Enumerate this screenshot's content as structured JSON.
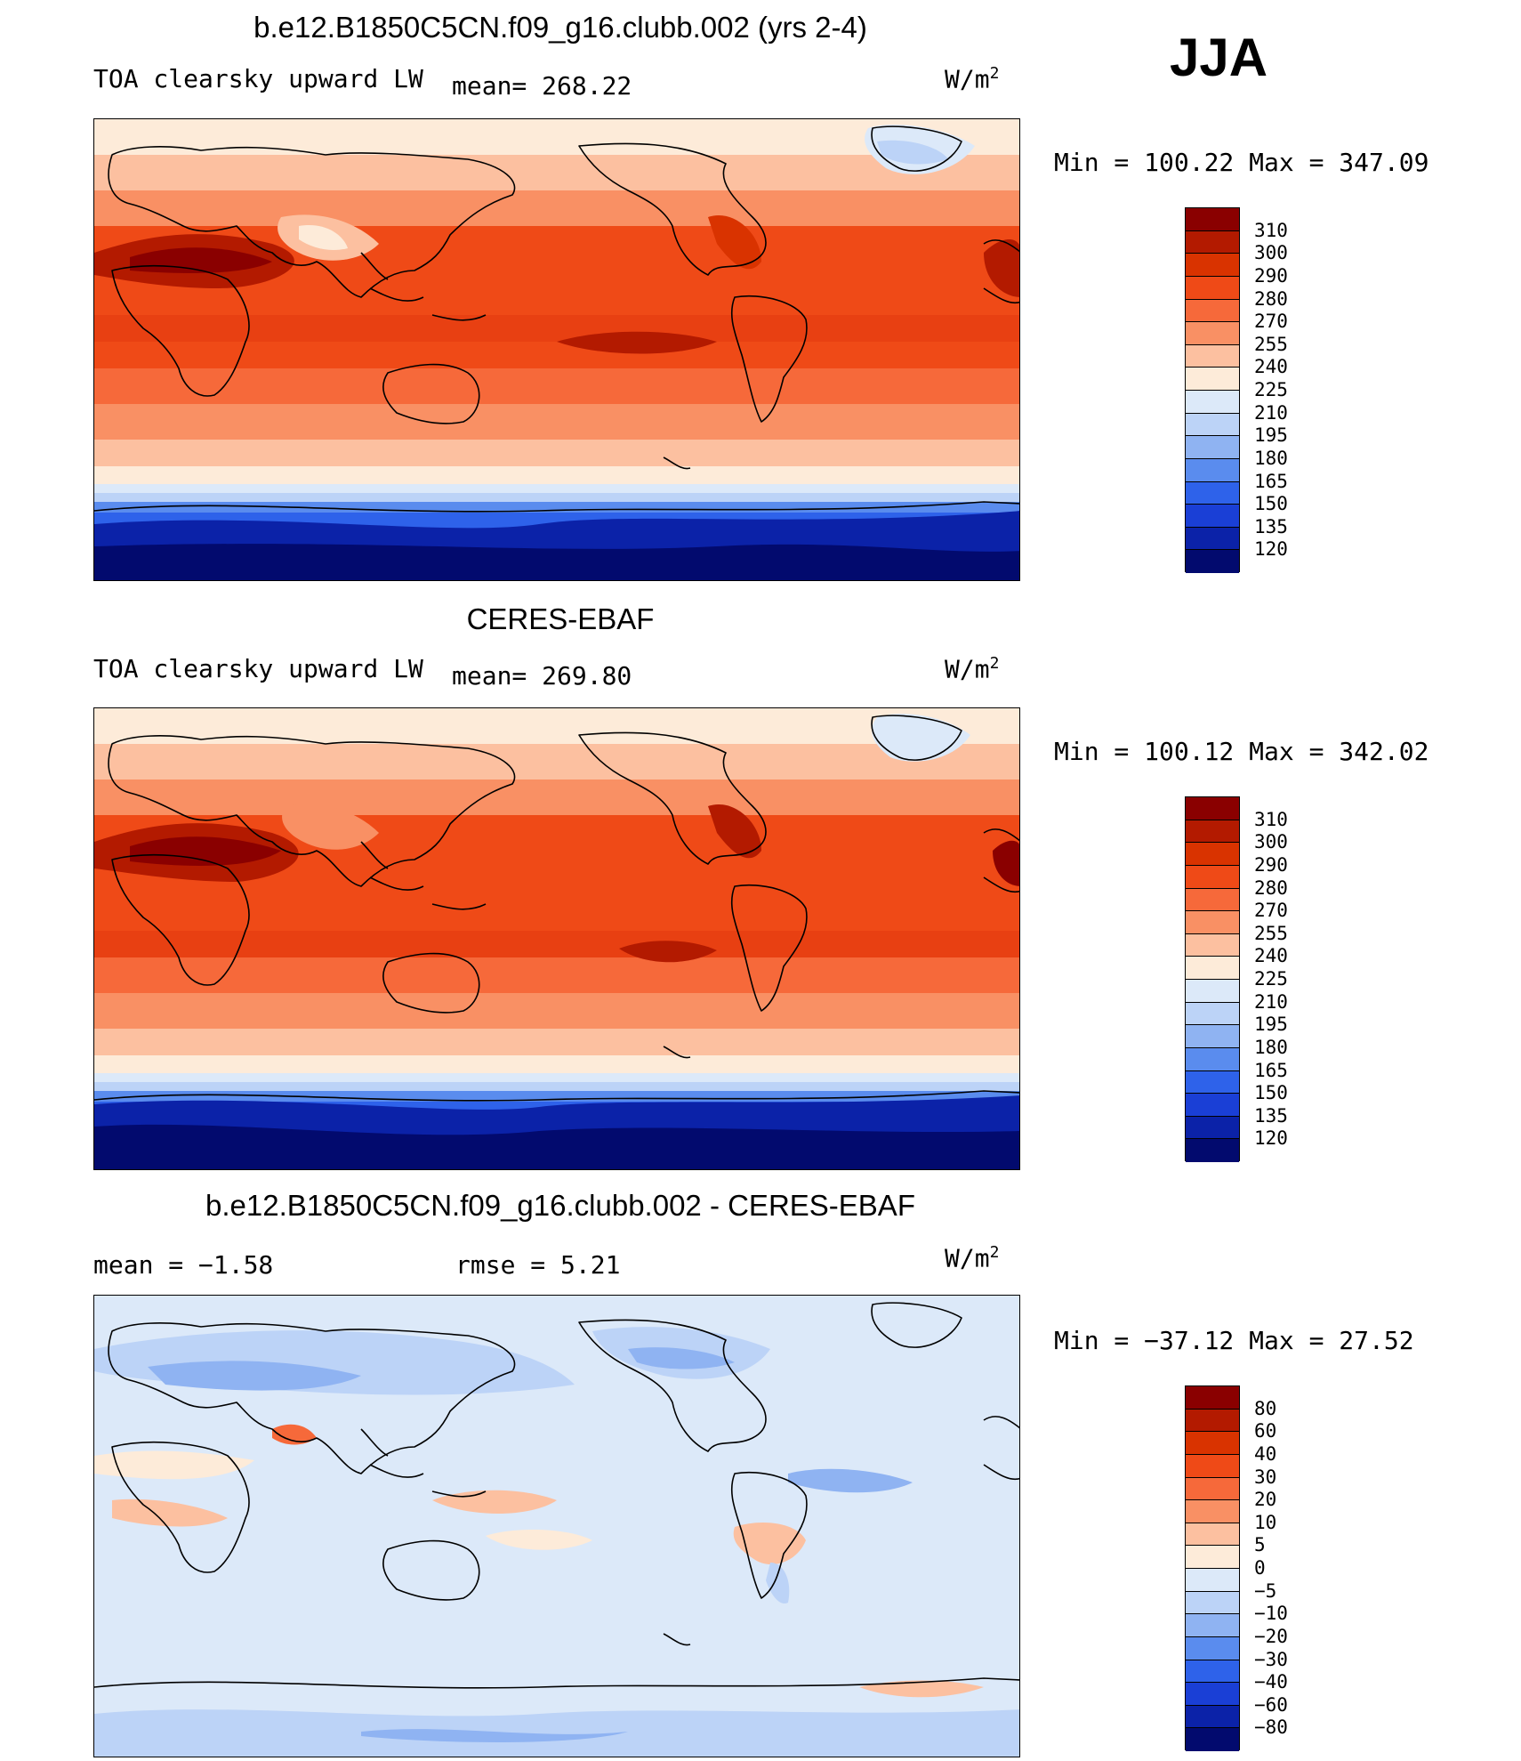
{
  "season": "JJA",
  "panels": [
    {
      "title": "b.e12.B1850C5CN.f09_g16.clubb.002 (yrs 2-4)",
      "subtitle_left": "TOA clearsky upward LW",
      "subtitle_mid": "mean= 268.22",
      "units": "W/m",
      "units_exp": "2",
      "minmax": "Min = 100.22 Max = 347.09",
      "colorbar": {
        "labels": [
          "310",
          "300",
          "290",
          "280",
          "270",
          "255",
          "240",
          "225",
          "210",
          "195",
          "180",
          "165",
          "150",
          "135",
          "120"
        ],
        "colors": [
          "#8a0000",
          "#b31a00",
          "#d93300",
          "#ef4a17",
          "#f6693a",
          "#f99064",
          "#fcc0a0",
          "#fdebd9",
          "#dce9f9",
          "#bcd3f7",
          "#8fb3f2",
          "#5a8cee",
          "#2e62ea",
          "#1a3fd6",
          "#0b22a8",
          "#020a6e"
        ]
      }
    },
    {
      "title": "CERES-EBAF",
      "subtitle_left": "TOA clearsky upward LW",
      "subtitle_mid": "mean= 269.80",
      "units": "W/m",
      "units_exp": "2",
      "minmax": "Min = 100.12 Max = 342.02",
      "colorbar": {
        "labels": [
          "310",
          "300",
          "290",
          "280",
          "270",
          "255",
          "240",
          "225",
          "210",
          "195",
          "180",
          "165",
          "150",
          "135",
          "120"
        ],
        "colors": [
          "#8a0000",
          "#b31a00",
          "#d93300",
          "#ef4a17",
          "#f6693a",
          "#f99064",
          "#fcc0a0",
          "#fdebd9",
          "#dce9f9",
          "#bcd3f7",
          "#8fb3f2",
          "#5a8cee",
          "#2e62ea",
          "#1a3fd6",
          "#0b22a8",
          "#020a6e"
        ]
      }
    },
    {
      "title": "b.e12.B1850C5CN.f09_g16.clubb.002 - CERES-EBAF",
      "subtitle_left": "mean =  −1.58",
      "subtitle_mid": "rmse =    5.21",
      "units": "W/m",
      "units_exp": "2",
      "minmax": "Min = −37.12 Max =  27.52",
      "colorbar": {
        "labels": [
          "80",
          "60",
          "40",
          "30",
          "20",
          "10",
          "5",
          "0",
          "−5",
          "−10",
          "−20",
          "−30",
          "−40",
          "−60",
          "−80"
        ],
        "colors": [
          "#8a0000",
          "#b31a00",
          "#d93300",
          "#ef4a17",
          "#f6693a",
          "#f99064",
          "#fcc0a0",
          "#fdebd9",
          "#dce9f9",
          "#bcd3f7",
          "#8fb3f2",
          "#5a8cee",
          "#2e62ea",
          "#1a3fd6",
          "#0b22a8",
          "#020a6e"
        ]
      }
    }
  ]
}
